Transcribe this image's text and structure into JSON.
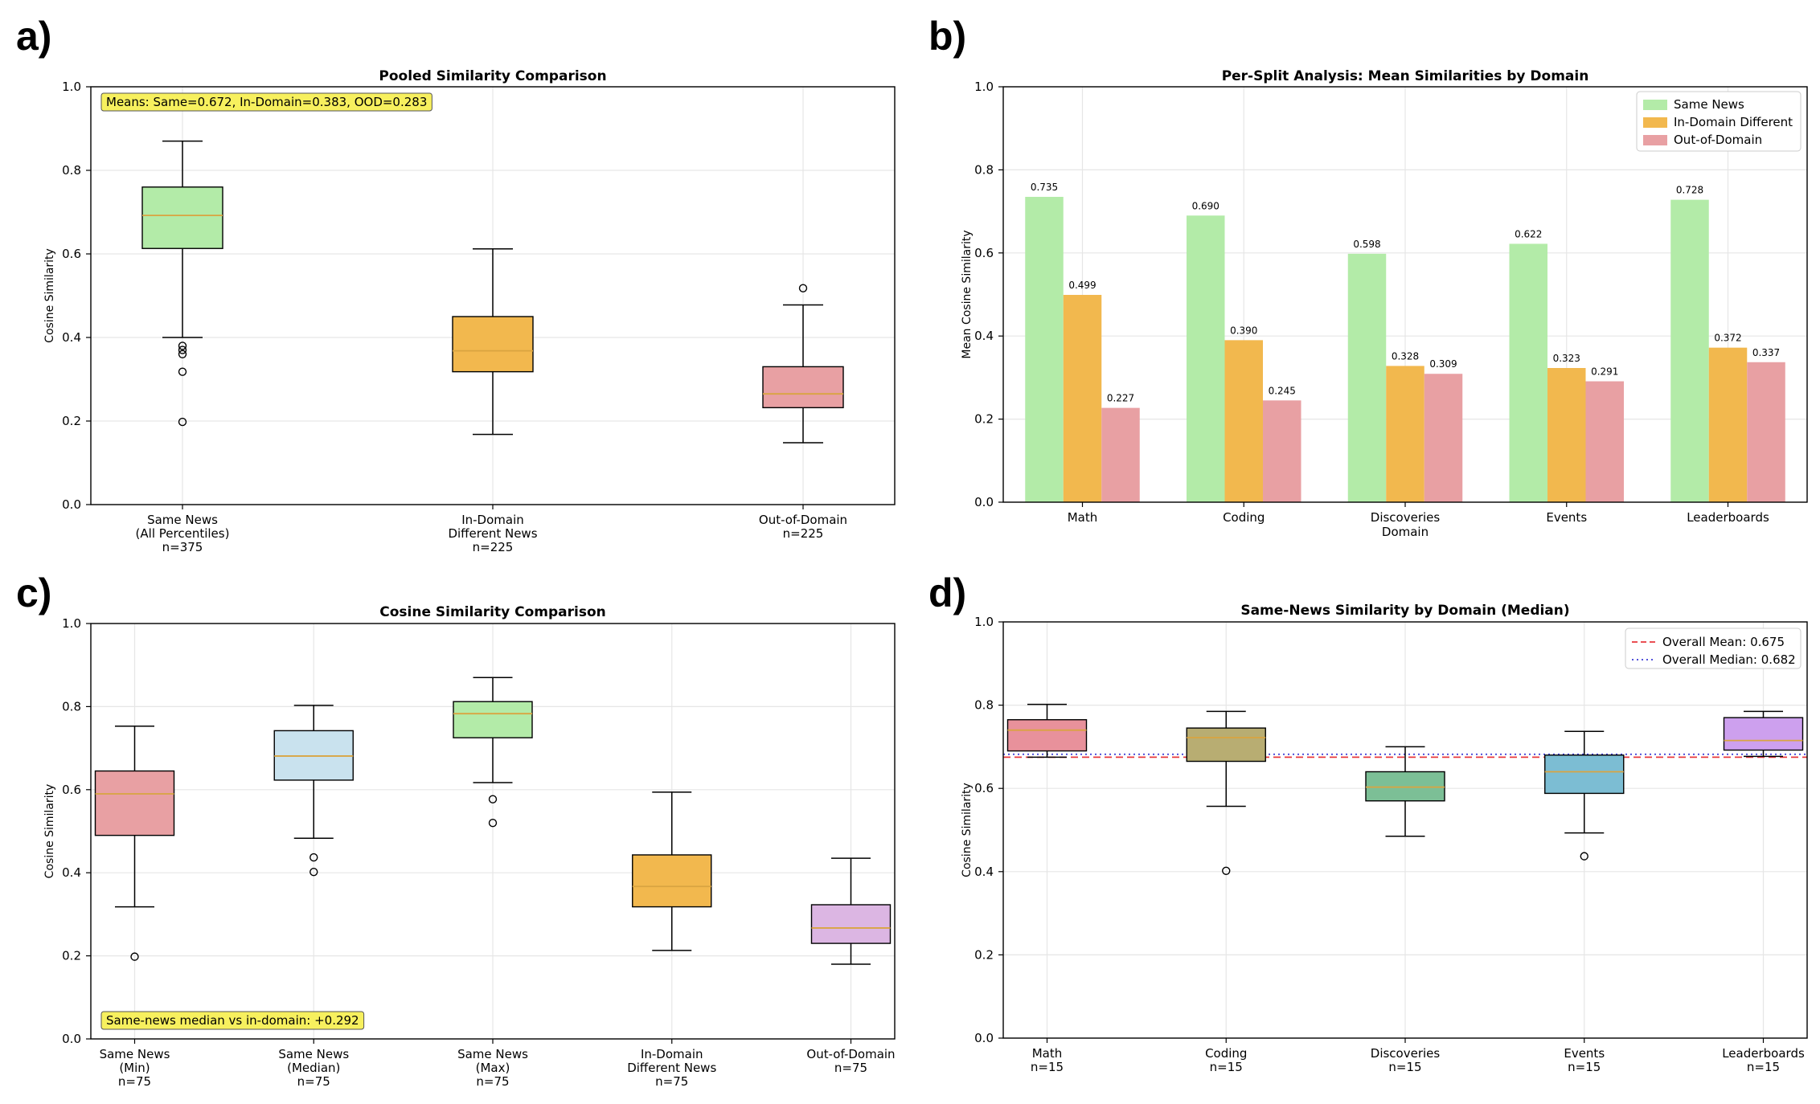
{
  "figure": {
    "panel_labels": [
      "a)",
      "b)",
      "c)",
      "d)"
    ]
  },
  "chart_data": [
    {
      "id": "a",
      "type": "box",
      "title": "Pooled Similarity Comparison",
      "ylabel": "Cosine Similarity",
      "xlabel": "",
      "ylim": [
        0,
        1
      ],
      "yticks": [
        "0.0",
        "0.2",
        "0.4",
        "0.6",
        "0.8",
        "1.0"
      ],
      "grid": true,
      "annotation": "Means: Same=0.672, In-Domain=0.383, OOD=0.283",
      "colors": [
        "#b3eba8",
        "#f2b84e",
        "#e8a0a3"
      ],
      "boxes": [
        {
          "label": [
            "Same News",
            "(All Percentiles)",
            "n=375"
          ],
          "whisker_low": 0.4,
          "q1": 0.613,
          "median": 0.692,
          "q3": 0.76,
          "whisker_high": 0.87,
          "outliers": [
            0.38,
            0.37,
            0.36,
            0.318,
            0.198
          ]
        },
        {
          "label": [
            "In-Domain",
            "Different News",
            "n=225"
          ],
          "whisker_low": 0.168,
          "q1": 0.318,
          "median": 0.368,
          "q3": 0.45,
          "whisker_high": 0.612,
          "outliers": []
        },
        {
          "label": [
            "Out-of-Domain",
            "n=225"
          ],
          "whisker_low": 0.148,
          "q1": 0.232,
          "median": 0.265,
          "q3": 0.33,
          "whisker_high": 0.478,
          "outliers": [
            0.518
          ]
        }
      ]
    },
    {
      "id": "b",
      "type": "bar",
      "title": "Per-Split Analysis: Mean Similarities by Domain",
      "ylabel": "Mean Cosine Similarity",
      "xlabel": "Domain",
      "ylim": [
        0,
        1
      ],
      "yticks": [
        "0.0",
        "0.2",
        "0.4",
        "0.6",
        "0.8",
        "1.0"
      ],
      "grid": true,
      "legend_position": "top-right",
      "categories": [
        "Math",
        "Coding",
        "Discoveries",
        "Events",
        "Leaderboards"
      ],
      "series": [
        {
          "name": "Same News",
          "color": "#b3eba8",
          "values": [
            0.735,
            0.69,
            0.598,
            0.622,
            0.728
          ],
          "labels": [
            "0.735",
            "0.690",
            "0.598",
            "0.622",
            "0.728"
          ]
        },
        {
          "name": "In-Domain Different",
          "color": "#f2b84e",
          "values": [
            0.499,
            0.39,
            0.328,
            0.323,
            0.372
          ],
          "labels": [
            "0.499",
            "0.390",
            "0.328",
            "0.323",
            "0.372"
          ]
        },
        {
          "name": "Out-of-Domain",
          "color": "#e8a0a3",
          "values": [
            0.227,
            0.245,
            0.309,
            0.291,
            0.337
          ],
          "labels": [
            "0.227",
            "0.245",
            "0.309",
            "0.291",
            "0.337"
          ]
        }
      ]
    },
    {
      "id": "c",
      "type": "box",
      "title": "Cosine Similarity Comparison",
      "ylabel": "Cosine Similarity",
      "xlabel": "",
      "ylim": [
        0,
        1
      ],
      "yticks": [
        "0.0",
        "0.2",
        "0.4",
        "0.6",
        "0.8",
        "1.0"
      ],
      "grid": true,
      "annotation": "Same-news median vs in-domain: +0.292",
      "colors": [
        "#e8a0a3",
        "#c9e2ee",
        "#b3eba8",
        "#f2b84e",
        "#dcb6e3"
      ],
      "boxes": [
        {
          "label": [
            "Same News",
            "(Min)",
            "n=75"
          ],
          "whisker_low": 0.318,
          "q1": 0.49,
          "median": 0.59,
          "q3": 0.645,
          "whisker_high": 0.753,
          "outliers": [
            0.198
          ]
        },
        {
          "label": [
            "Same News",
            "(Median)",
            "n=75"
          ],
          "whisker_low": 0.483,
          "q1": 0.623,
          "median": 0.681,
          "q3": 0.742,
          "whisker_high": 0.803,
          "outliers": [
            0.437,
            0.402
          ]
        },
        {
          "label": [
            "Same News",
            "(Max)",
            "n=75"
          ],
          "whisker_low": 0.617,
          "q1": 0.725,
          "median": 0.783,
          "q3": 0.812,
          "whisker_high": 0.87,
          "outliers": [
            0.577,
            0.52
          ]
        },
        {
          "label": [
            "In-Domain",
            "Different News",
            "n=75"
          ],
          "whisker_low": 0.213,
          "q1": 0.318,
          "median": 0.367,
          "q3": 0.443,
          "whisker_high": 0.594,
          "outliers": []
        },
        {
          "label": [
            "Out-of-Domain",
            "n=75"
          ],
          "whisker_low": 0.18,
          "q1": 0.23,
          "median": 0.267,
          "q3": 0.323,
          "whisker_high": 0.435,
          "outliers": []
        }
      ]
    },
    {
      "id": "d",
      "type": "box",
      "title": "Same-News Similarity by Domain (Median)",
      "ylabel": "Cosine Similarity",
      "xlabel": "",
      "ylim": [
        0,
        1
      ],
      "yticks": [
        "0.0",
        "0.2",
        "0.4",
        "0.6",
        "0.8",
        "1.0"
      ],
      "grid": true,
      "legend_position": "top-right",
      "reference_lines": [
        {
          "name": "Overall Mean: 0.675",
          "value": 0.675,
          "color": "#e8383d",
          "style": "dashed"
        },
        {
          "name": "Overall Median: 0.682",
          "value": 0.682,
          "color": "#3a3ad6",
          "style": "dotted"
        }
      ],
      "colors": [
        "#e8919b",
        "#b8ad72",
        "#7cbf96",
        "#7cbdd3",
        "#cda0ee"
      ],
      "boxes": [
        {
          "label": [
            "Math",
            "n=15"
          ],
          "whisker_low": 0.675,
          "q1": 0.69,
          "median": 0.74,
          "q3": 0.765,
          "whisker_high": 0.802,
          "outliers": []
        },
        {
          "label": [
            "Coding",
            "n=15"
          ],
          "whisker_low": 0.557,
          "q1": 0.665,
          "median": 0.722,
          "q3": 0.745,
          "whisker_high": 0.785,
          "outliers": [
            0.402
          ]
        },
        {
          "label": [
            "Discoveries",
            "n=15"
          ],
          "whisker_low": 0.485,
          "q1": 0.57,
          "median": 0.603,
          "q3": 0.64,
          "whisker_high": 0.7,
          "outliers": []
        },
        {
          "label": [
            "Events",
            "n=15"
          ],
          "whisker_low": 0.493,
          "q1": 0.588,
          "median": 0.64,
          "q3": 0.68,
          "whisker_high": 0.737,
          "outliers": [
            0.437
          ]
        },
        {
          "label": [
            "Leaderboards",
            "n=15"
          ],
          "whisker_low": 0.677,
          "q1": 0.692,
          "median": 0.715,
          "q3": 0.77,
          "whisker_high": 0.785,
          "outliers": []
        }
      ]
    }
  ]
}
